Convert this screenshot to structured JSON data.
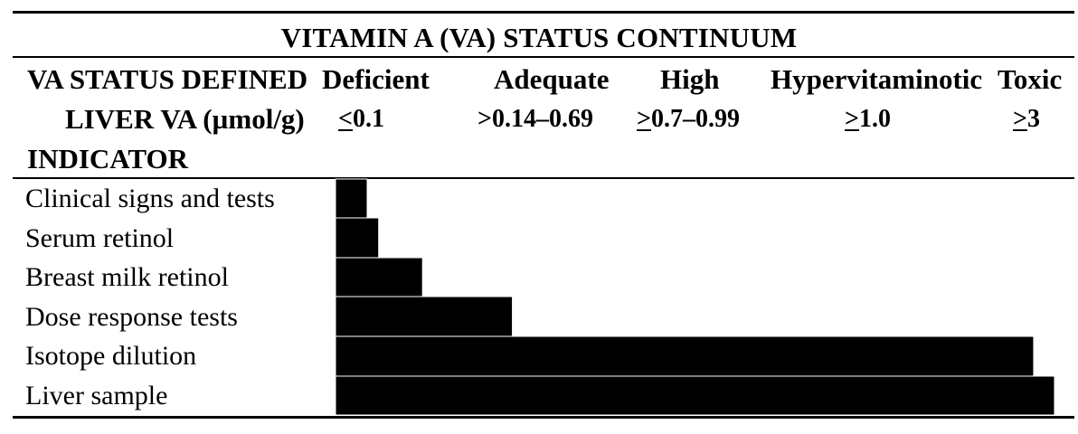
{
  "chart_data": {
    "type": "bar",
    "title": "VITAMIN A (VA) STATUS CONTINUUM",
    "status_label": "VA STATUS DEFINED",
    "threshold_label": "LIVER VA (µmol/g)",
    "indicator_label": "INDICATOR",
    "statuses": [
      {
        "name": "Deficient",
        "threshold_prefix": "<",
        "threshold_value": "0.1"
      },
      {
        "name": "Adequate",
        "threshold_prefix": "",
        "threshold_value": ">0.14–0.69"
      },
      {
        "name": "High",
        "threshold_prefix": ">",
        "threshold_value": "0.7–0.99"
      },
      {
        "name": "Hypervitaminotic",
        "threshold_prefix": ">",
        "threshold_value": "1.0"
      },
      {
        "name": "Toxic",
        "threshold_prefix": ">",
        "threshold_value": "3"
      }
    ],
    "categories": [
      "Clinical signs and tests",
      "Serum retinol",
      "Breast milk retinol",
      "Dose response tests",
      "Isotope dilution",
      "Liver sample"
    ],
    "values": [
      0.044,
      0.06,
      0.121,
      0.246,
      0.971,
      1.0
    ],
    "xlim": [
      0,
      1
    ],
    "bar_color": "#000000"
  }
}
